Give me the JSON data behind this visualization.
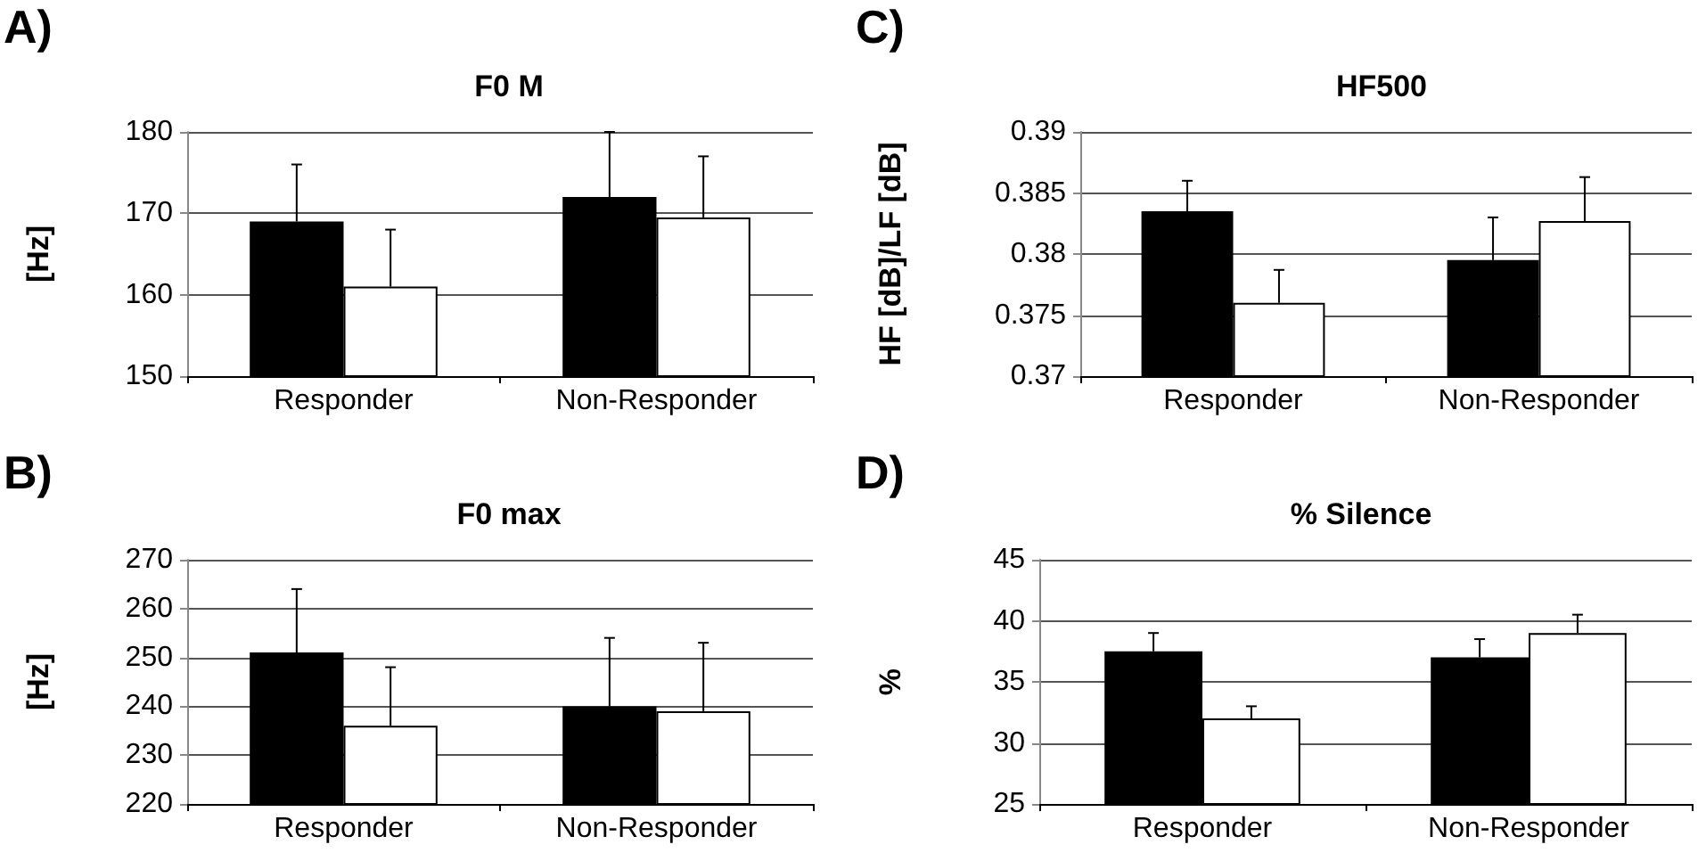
{
  "chart_data": [
    {
      "type": "bar",
      "title": "F0 M",
      "ylabel": "[Hz]",
      "annotations": [
        "A)"
      ],
      "categories": [
        "Responder",
        "Non-Responder"
      ],
      "series": [
        {
          "color": "#000000",
          "values": [
            169,
            172
          ],
          "errors": [
            [
              169,
              176
            ],
            [
              172,
              180
            ]
          ]
        },
        {
          "color": "#ffffff",
          "values": [
            161,
            169.5
          ],
          "errors": [
            [
              161,
              168
            ],
            [
              169.5,
              177
            ]
          ]
        }
      ],
      "ylim": [
        150,
        180
      ],
      "yticks": [
        150,
        160,
        170,
        180
      ],
      "grid": "y"
    },
    {
      "type": "bar",
      "title": "HF500",
      "ylabel": "HF [dB]/LF [dB]",
      "annotations": [
        "C)"
      ],
      "categories": [
        "Responder",
        "Non-Responder"
      ],
      "series": [
        {
          "color": "#000000",
          "values": [
            0.3835,
            0.3795
          ],
          "errors": [
            [
              0.3835,
              0.386
            ],
            [
              0.3795,
              0.383
            ]
          ]
        },
        {
          "color": "#ffffff",
          "values": [
            0.376,
            0.3827
          ],
          "errors": [
            [
              0.376,
              0.3787
            ],
            [
              0.3827,
              0.3863
            ]
          ]
        }
      ],
      "ylim": [
        0.37,
        0.39
      ],
      "yticks": [
        0.37,
        0.375,
        0.38,
        0.385,
        0.39
      ],
      "grid": "y"
    },
    {
      "type": "bar",
      "title": "F0 max",
      "ylabel": "[Hz]",
      "annotations": [
        "B)"
      ],
      "categories": [
        "Responder",
        "Non-Responder"
      ],
      "series": [
        {
          "color": "#000000",
          "values": [
            251,
            240
          ],
          "errors": [
            [
              251,
              264
            ],
            [
              240,
              254
            ]
          ]
        },
        {
          "color": "#ffffff",
          "values": [
            236,
            239
          ],
          "errors": [
            [
              236,
              248
            ],
            [
              239,
              253
            ]
          ]
        }
      ],
      "ylim": [
        220,
        270
      ],
      "yticks": [
        220,
        230,
        240,
        250,
        260,
        270
      ],
      "grid": "y"
    },
    {
      "type": "bar",
      "title": "% Silence",
      "ylabel": "%",
      "annotations": [
        "D)"
      ],
      "categories": [
        "Responder",
        "Non-Responder"
      ],
      "series": [
        {
          "color": "#000000",
          "values": [
            37.5,
            37
          ],
          "errors": [
            [
              37.5,
              39
            ],
            [
              37,
              38.5
            ]
          ]
        },
        {
          "color": "#ffffff",
          "values": [
            32,
            39
          ],
          "errors": [
            [
              32,
              33
            ],
            [
              39,
              40.5
            ]
          ]
        }
      ],
      "ylim": [
        25,
        45
      ],
      "yticks": [
        25,
        30,
        35,
        40,
        45
      ],
      "grid": "y"
    }
  ]
}
